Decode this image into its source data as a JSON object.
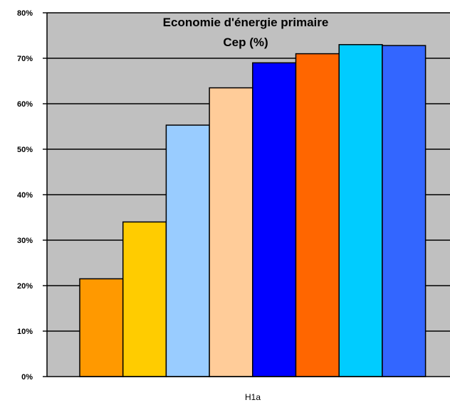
{
  "chart_data": {
    "type": "bar",
    "title": "Economie d'énergie primaire",
    "subtitle": "Cep (%)",
    "xlabel": "H1a",
    "ylabel": "",
    "ylim": [
      0,
      80
    ],
    "yticks": [
      "0%",
      "10%",
      "20%",
      "30%",
      "40%",
      "50%",
      "60%",
      "70%",
      "80%"
    ],
    "grid": true,
    "legend": "none",
    "categories": [
      "H1a"
    ],
    "series": [
      {
        "values": [
          21.5
        ],
        "color": "#FF9900"
      },
      {
        "values": [
          34.0
        ],
        "color": "#FFCC00"
      },
      {
        "values": [
          55.3
        ],
        "color": "#99CCFF"
      },
      {
        "values": [
          63.5
        ],
        "color": "#FFCC99"
      },
      {
        "values": [
          69.0
        ],
        "color": "#0000FF"
      },
      {
        "values": [
          71.0
        ],
        "color": "#FF6600"
      },
      {
        "values": [
          73.0
        ],
        "color": "#00CCFF"
      },
      {
        "values": [
          72.8
        ],
        "color": "#3366FF"
      }
    ],
    "plot_background": "#C0C0C0"
  }
}
